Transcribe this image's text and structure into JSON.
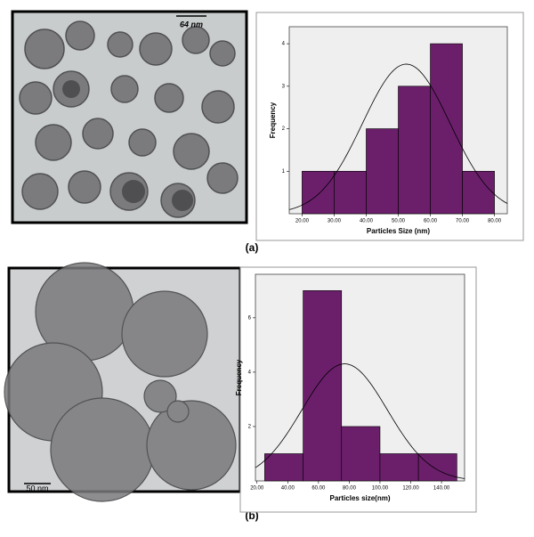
{
  "panels": [
    {
      "label": "(a)",
      "scale_bar": "64 nm"
    },
    {
      "label": "(b)",
      "scale_bar": "50 nm"
    }
  ],
  "chart_data": [
    {
      "type": "histogram",
      "xlabel": "Particles Size (nm)",
      "ylabel": "Frequency",
      "bins": [
        20,
        30,
        40,
        50,
        60,
        70,
        80
      ],
      "values": [
        1,
        1,
        2,
        3,
        4,
        1
      ],
      "color": "#6b1f6b",
      "curve": {
        "mean": 52.5,
        "sd": 13.6
      },
      "xlim": [
        16,
        84
      ],
      "ylim": [
        0,
        4.4
      ],
      "xticks": [
        {
          "value": 20,
          "label": "20.00"
        },
        {
          "value": 30,
          "label": "30.00"
        },
        {
          "value": 40,
          "label": "40.00"
        },
        {
          "value": 50,
          "label": "50.00"
        },
        {
          "value": 60,
          "label": "60.00"
        },
        {
          "value": 70,
          "label": "70.00"
        },
        {
          "value": 80,
          "label": "80.00"
        }
      ],
      "yticks": [
        1,
        2,
        3,
        4
      ]
    },
    {
      "type": "histogram",
      "xlabel": "Particles size(nm)",
      "ylabel": "Frequency",
      "bins": [
        25,
        50,
        75,
        100,
        125,
        150
      ],
      "values": [
        1,
        7,
        2,
        1,
        1
      ],
      "color": "#6b1f6b",
      "curve": {
        "mean": 77,
        "sd": 27.8
      },
      "xlim": [
        19,
        155
      ],
      "ylim": [
        0,
        7.6
      ],
      "xticks": [
        {
          "value": 20,
          "label": "20.00"
        },
        {
          "value": 40,
          "label": "40.00"
        },
        {
          "value": 60,
          "label": "60.00"
        },
        {
          "value": 80,
          "label": "80.00"
        },
        {
          "value": 100,
          "label": "100.00"
        },
        {
          "value": 120,
          "label": "120.00"
        },
        {
          "value": 140,
          "label": "140.00"
        }
      ],
      "yticks": [
        2,
        4,
        6
      ]
    }
  ]
}
